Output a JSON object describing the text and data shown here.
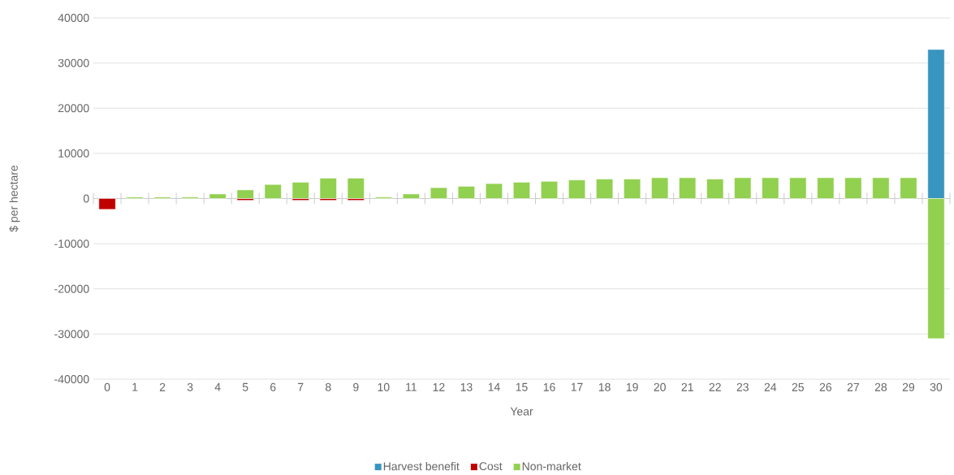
{
  "chart_data": {
    "type": "bar",
    "stacked": true,
    "xlabel": "Year",
    "ylabel": "$ per hectare",
    "categories": [
      "0",
      "1",
      "2",
      "3",
      "4",
      "5",
      "6",
      "7",
      "8",
      "9",
      "10",
      "11",
      "12",
      "13",
      "14",
      "15",
      "16",
      "17",
      "18",
      "19",
      "20",
      "21",
      "22",
      "23",
      "24",
      "25",
      "26",
      "27",
      "28",
      "29",
      "30"
    ],
    "series": [
      {
        "name": "Harvest benefit",
        "color": "#3795bf",
        "values": [
          null,
          null,
          null,
          null,
          null,
          null,
          null,
          null,
          null,
          null,
          null,
          null,
          null,
          null,
          null,
          null,
          null,
          null,
          null,
          null,
          null,
          null,
          null,
          null,
          null,
          null,
          null,
          null,
          null,
          null,
          33000
        ]
      },
      {
        "name": "Cost",
        "color": "#c00000",
        "values": [
          -2400,
          null,
          null,
          null,
          null,
          -400,
          null,
          -400,
          -400,
          -400,
          null,
          null,
          null,
          null,
          null,
          null,
          null,
          null,
          null,
          null,
          null,
          null,
          null,
          null,
          null,
          null,
          null,
          null,
          null,
          null,
          null
        ]
      },
      {
        "name": "Non-market",
        "color": "#92d050",
        "values": [
          null,
          300,
          300,
          300,
          1000,
          1900,
          3100,
          3600,
          4500,
          4500,
          300,
          1000,
          2400,
          2700,
          3300,
          3600,
          3800,
          4100,
          4300,
          4300,
          4600,
          4600,
          4300,
          4600,
          4600,
          4600,
          4600,
          4600,
          4600,
          4600,
          -31000
        ]
      }
    ],
    "ylim": [
      -40000,
      40000
    ],
    "yticks": [
      -40000,
      -30000,
      -20000,
      -10000,
      0,
      10000,
      20000,
      30000,
      40000
    ],
    "grid": "y",
    "legend": "bottom"
  }
}
